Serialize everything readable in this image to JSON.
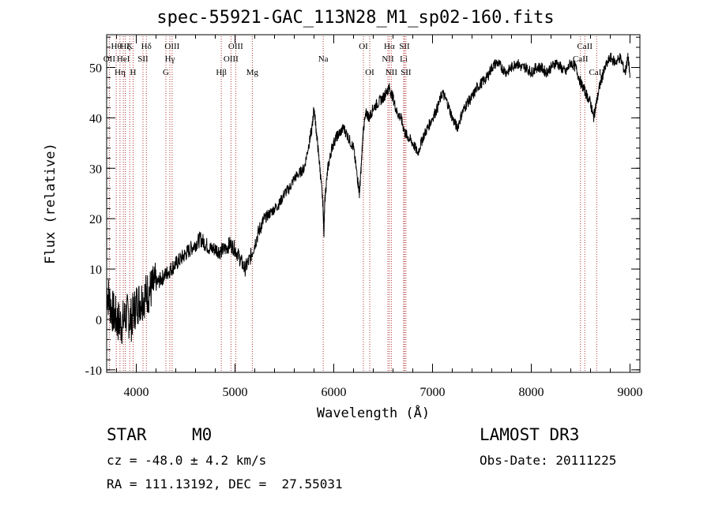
{
  "header": {
    "title": "spec-55921-GAC_113N28_M1_sp02-160.fits"
  },
  "info": {
    "object_class": "STAR",
    "subclass": "M0",
    "survey": "LAMOST DR3",
    "cz": "cz = -48.0 ± 4.2 km/s",
    "obs_date": "Obs-Date: 20111225",
    "coords": "RA = 111.13192, DEC =  27.55031"
  },
  "chart_data": {
    "type": "line",
    "title": "spec-55921-GAC_113N28_M1_sp02-160.fits",
    "xlabel": "Wavelength (Å)",
    "ylabel": "Flux (relative)",
    "xlim": [
      3700,
      9100
    ],
    "ylim": [
      -10.5,
      56.5
    ],
    "x_ticks": [
      4000,
      5000,
      6000,
      7000,
      8000,
      9000
    ],
    "x_tick_labels": [
      "4000",
      "5000",
      "6000",
      "7000",
      "8000",
      "9000"
    ],
    "y_ticks": [
      -10,
      0,
      10,
      20,
      30,
      40,
      50
    ],
    "y_tick_labels": [
      "-10",
      "0",
      "10",
      "20",
      "30",
      "40",
      "50"
    ],
    "x_minor_step": 200,
    "y_minor_step": 2,
    "line_color": "#000000",
    "marker_color": "#b03030",
    "series": [
      {
        "name": "spectrum",
        "x": [
          3700,
          3750,
          3800,
          3850,
          3900,
          3950,
          4000,
          4050,
          4100,
          4150,
          4200,
          4250,
          4300,
          4350,
          4400,
          4450,
          4500,
          4550,
          4600,
          4650,
          4700,
          4750,
          4800,
          4850,
          4900,
          4950,
          5000,
          5050,
          5100,
          5150,
          5200,
          5250,
          5300,
          5350,
          5400,
          5450,
          5500,
          5550,
          5600,
          5650,
          5700,
          5750,
          5780,
          5800,
          5830,
          5860,
          5890,
          5900,
          5910,
          5940,
          5980,
          6020,
          6060,
          6100,
          6150,
          6200,
          6240,
          6260,
          6280,
          6300,
          6330,
          6360,
          6400,
          6450,
          6500,
          6530,
          6560,
          6600,
          6640,
          6680,
          6720,
          6760,
          6800,
          6850,
          6900,
          6950,
          7000,
          7050,
          7100,
          7150,
          7200,
          7250,
          7300,
          7350,
          7400,
          7450,
          7500,
          7550,
          7600,
          7650,
          7700,
          7750,
          7800,
          7850,
          7900,
          7950,
          8000,
          8050,
          8100,
          8150,
          8200,
          8250,
          8300,
          8350,
          8400,
          8450,
          8500,
          8550,
          8600,
          8630,
          8660,
          8700,
          8750,
          8800,
          8850,
          8900,
          8950,
          8980,
          9000
        ],
        "y": [
          6,
          2,
          0,
          -1,
          1,
          0,
          3,
          4,
          5,
          6,
          7,
          8,
          9,
          10,
          11,
          12,
          13,
          14,
          15,
          16,
          15,
          14,
          14,
          13.5,
          14,
          15,
          14,
          12,
          10,
          12,
          15,
          18,
          20,
          21,
          22,
          23,
          25,
          26,
          28,
          29,
          30,
          35,
          38,
          42,
          36,
          30,
          23,
          17,
          24,
          30,
          34,
          36,
          37,
          38,
          36,
          34,
          28,
          25,
          31,
          38,
          41,
          40,
          42,
          43,
          44,
          45,
          46,
          44,
          41,
          40,
          37,
          36,
          35,
          33,
          36,
          38,
          40,
          42,
          45,
          43,
          40,
          38,
          41,
          43,
          44,
          46,
          47,
          48,
          50,
          51,
          50,
          49,
          50,
          51,
          50,
          50,
          49,
          50,
          50,
          49,
          50,
          51,
          50,
          49,
          51,
          50,
          47,
          45,
          43,
          40,
          43,
          47,
          50,
          52,
          51,
          52,
          49,
          52,
          48
        ]
      }
    ],
    "line_markers": [
      {
        "wavelength": 3797,
        "label": "Hθ",
        "row": 0
      },
      {
        "wavelength": 3727,
        "label": "OII",
        "row": 1
      },
      {
        "wavelength": 3835,
        "label": "Hη",
        "row": 2
      },
      {
        "wavelength": 3869,
        "label": "HeI",
        "row": 1
      },
      {
        "wavelength": 3889,
        "label": "Hζ",
        "row": 0
      },
      {
        "wavelength": 3934,
        "label": "K",
        "row": 0
      },
      {
        "wavelength": 3968,
        "label": "H",
        "row": 2
      },
      {
        "wavelength": 4068,
        "label": "SII",
        "row": 1
      },
      {
        "wavelength": 4102,
        "label": "Hδ",
        "row": 0
      },
      {
        "wavelength": 4300,
        "label": "G",
        "row": 2
      },
      {
        "wavelength": 4340,
        "label": "Hγ",
        "row": 1
      },
      {
        "wavelength": 4363,
        "label": "OIII",
        "row": 0
      },
      {
        "wavelength": 4861,
        "label": "Hβ",
        "row": 2
      },
      {
        "wavelength": 4959,
        "label": "OIII",
        "row": 1
      },
      {
        "wavelength": 5007,
        "label": "OIII",
        "row": 0
      },
      {
        "wavelength": 5175,
        "label": "Mg",
        "row": 2
      },
      {
        "wavelength": 5893,
        "label": "Na",
        "row": 1
      },
      {
        "wavelength": 6300,
        "label": "OI",
        "row": 0
      },
      {
        "wavelength": 6364,
        "label": "OI",
        "row": 2
      },
      {
        "wavelength": 6548,
        "label": "NII",
        "row": 1
      },
      {
        "wavelength": 6563,
        "label": "Hα",
        "row": 0
      },
      {
        "wavelength": 6583,
        "label": "NII",
        "row": 2
      },
      {
        "wavelength": 6708,
        "label": "Li",
        "row": 1
      },
      {
        "wavelength": 6716,
        "label": "SII",
        "row": 0
      },
      {
        "wavelength": 6731,
        "label": "SII",
        "row": 2
      },
      {
        "wavelength": 8498,
        "label": "CaII",
        "row": 1
      },
      {
        "wavelength": 8542,
        "label": "CaII",
        "row": 0
      },
      {
        "wavelength": 8662,
        "label": "CaII",
        "row": 2
      }
    ]
  }
}
